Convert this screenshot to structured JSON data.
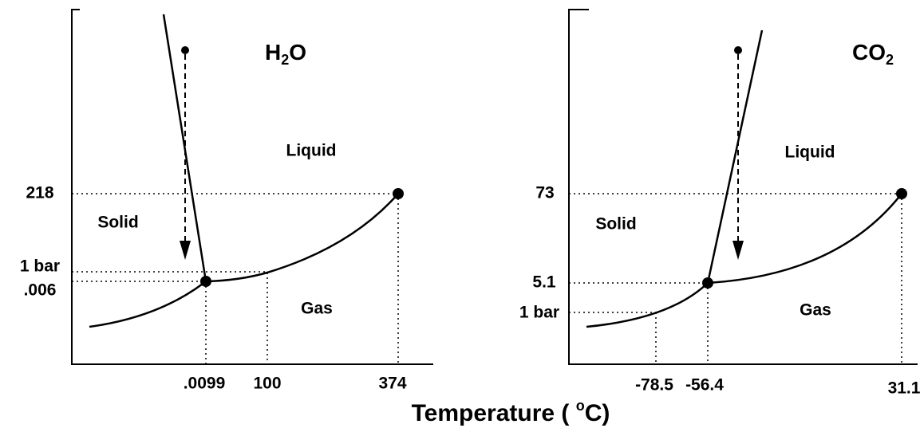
{
  "panels": [
    {
      "formula": {
        "main": "H",
        "sub": "2",
        "tail": "O"
      },
      "regions": {
        "solid": "Solid",
        "liquid": "Liquid",
        "gas": "Gas"
      },
      "pressure_labels": [
        "218",
        "1 bar",
        ".006"
      ],
      "temperature_labels": [
        ".0099",
        "100",
        "374"
      ]
    },
    {
      "formula": {
        "main": "CO",
        "sub": "2",
        "tail": ""
      },
      "regions": {
        "solid": "Solid",
        "liquid": "Liquid",
        "gas": "Gas"
      },
      "pressure_labels": [
        "73",
        "5.1",
        "1 bar"
      ],
      "temperature_labels": [
        "-78.5",
        "-56.4",
        "31.1"
      ]
    }
  ],
  "axis_label": {
    "before": "Temperature ( ",
    "sup": "o",
    "after": "C)"
  }
}
